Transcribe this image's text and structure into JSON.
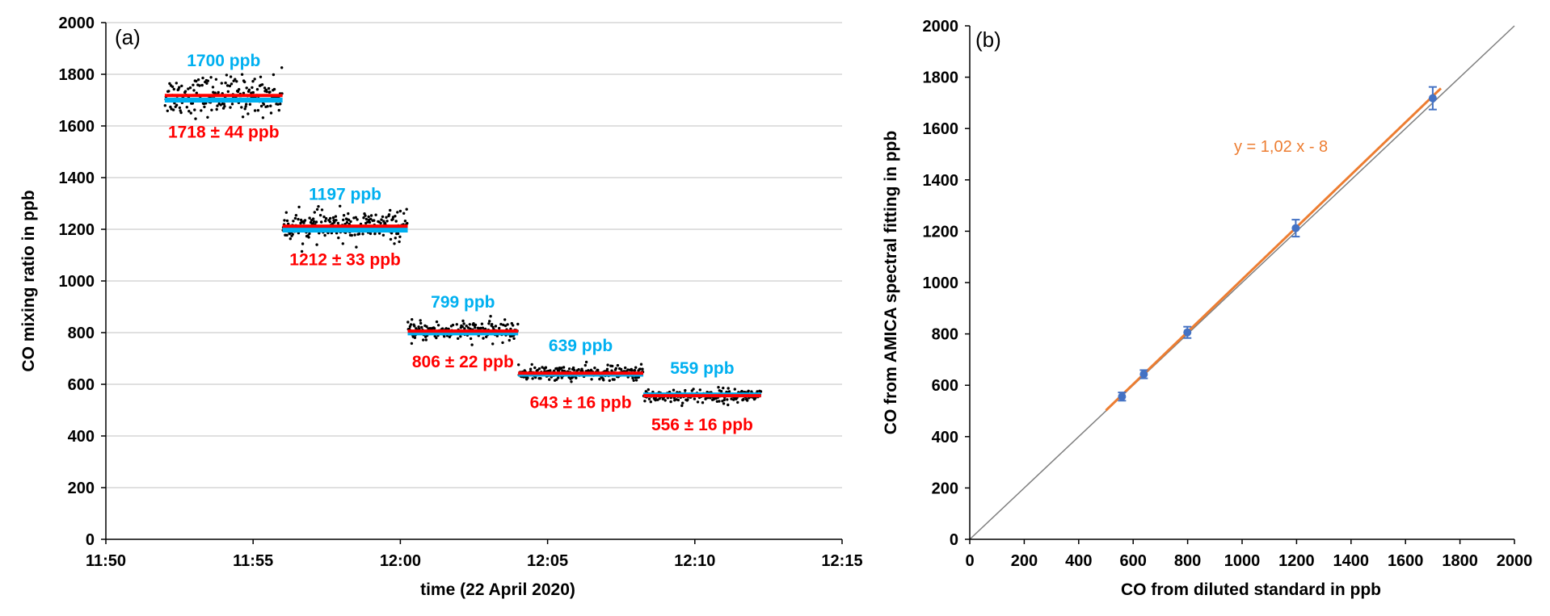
{
  "chart_data": [
    {
      "type": "scatter",
      "panel_label": "(a)",
      "xlabel": "time (22 April 2020)",
      "ylabel": "CO mixing ratio in ppb",
      "xlim": [
        "11:50",
        "12:15"
      ],
      "ylim": [
        0,
        2000
      ],
      "x_ticks": [
        "11:50",
        "11:55",
        "12:00",
        "12:05",
        "12:10",
        "12:15"
      ],
      "y_ticks": [
        "0",
        "200",
        "400",
        "600",
        "800",
        "1000",
        "1200",
        "1400",
        "1600",
        "1800",
        "2000"
      ],
      "grid": "horizontal",
      "colors": {
        "reference": "#00b0f0",
        "measured": "#ff0000",
        "points": "#000000"
      },
      "steps": [
        {
          "start": "11:52:00",
          "end": "11:56:00",
          "reference_ppb": 1700,
          "mean_ppb": 1718,
          "sd_ppb": 44,
          "reference_label": "1700 ppb",
          "measured_label": "1718 ± 44 ppb"
        },
        {
          "start": "11:56:00",
          "end": "12:00:15",
          "reference_ppb": 1197,
          "mean_ppb": 1212,
          "sd_ppb": 33,
          "reference_label": "1197 ppb",
          "measured_label": "1212 ± 33 ppb"
        },
        {
          "start": "12:00:15",
          "end": "12:04:00",
          "reference_ppb": 799,
          "mean_ppb": 806,
          "sd_ppb": 22,
          "reference_label": "799 ppb",
          "measured_label": "806 ± 22 ppb"
        },
        {
          "start": "12:04:00",
          "end": "12:08:15",
          "reference_ppb": 639,
          "mean_ppb": 643,
          "sd_ppb": 16,
          "reference_label": "639 ppb",
          "measured_label": "643 ± 16 ppb"
        },
        {
          "start": "12:08:15",
          "end": "12:12:15",
          "reference_ppb": 559,
          "mean_ppb": 556,
          "sd_ppb": 16,
          "reference_label": "559 ppb",
          "measured_label": "556 ± 16 ppb"
        }
      ]
    },
    {
      "type": "scatter",
      "panel_label": "(b)",
      "xlabel": "CO from diluted standard in ppb",
      "ylabel": "CO from AMICA spectral fitting in ppb",
      "xlim": [
        0,
        2000
      ],
      "ylim": [
        0,
        2000
      ],
      "x_ticks": [
        "0",
        "200",
        "400",
        "600",
        "800",
        "1000",
        "1200",
        "1400",
        "1600",
        "1800",
        "2000"
      ],
      "y_ticks": [
        "0",
        "200",
        "400",
        "600",
        "800",
        "1000",
        "1200",
        "1400",
        "1600",
        "1800",
        "2000"
      ],
      "grid": "none",
      "points": [
        {
          "x": 559,
          "y": 556,
          "err": 16
        },
        {
          "x": 639,
          "y": 643,
          "err": 16
        },
        {
          "x": 799,
          "y": 806,
          "err": 22
        },
        {
          "x": 1197,
          "y": 1212,
          "err": 33
        },
        {
          "x": 1700,
          "y": 1718,
          "err": 44
        }
      ],
      "fit": {
        "slope": 1.02,
        "intercept": -8,
        "x_range": [
          500,
          1730
        ],
        "equation": "y = 1,02 x - 8"
      },
      "identity_line": {
        "x_range": [
          0,
          2000
        ]
      },
      "colors": {
        "points": "#4472c4",
        "fit": "#ed7d31",
        "identity": "#7f7f7f"
      }
    }
  ]
}
